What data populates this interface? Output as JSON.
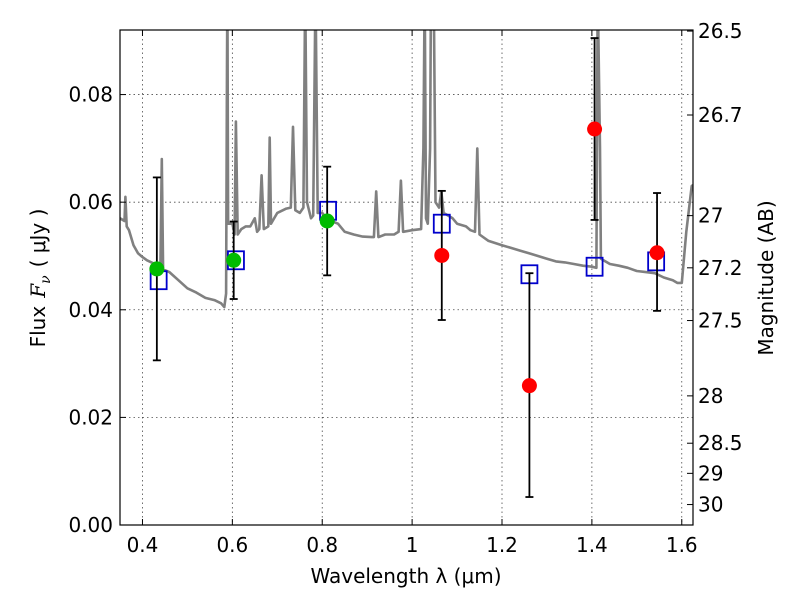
{
  "chart_data": {
    "type": "scatter",
    "xlabel": "Wavelength  λ (μm)",
    "ylabel_prefix": "Flux",
    "ylabel_symbol": "F",
    "ylabel_subscript": "ν",
    "ylabel_unit": "( μJy )",
    "ylabel_right": "Magnitude (AB)",
    "xlim": [
      0.35,
      1.625
    ],
    "ylim": [
      0.0,
      0.092
    ],
    "x_ticks": [
      {
        "value": 0.4,
        "label": "0.4"
      },
      {
        "value": 0.6,
        "label": "0.6"
      },
      {
        "value": 0.8,
        "label": "0.8"
      },
      {
        "value": 1.0,
        "label": "1"
      },
      {
        "value": 1.2,
        "label": "1.2"
      },
      {
        "value": 1.4,
        "label": "1.4"
      },
      {
        "value": 1.6,
        "label": "1.6"
      }
    ],
    "y_ticks": [
      {
        "value": 0.0,
        "label": "0.00"
      },
      {
        "value": 0.02,
        "label": "0.02"
      },
      {
        "value": 0.04,
        "label": "0.04"
      },
      {
        "value": 0.06,
        "label": "0.06"
      },
      {
        "value": 0.08,
        "label": "0.08"
      }
    ],
    "mag_ticks": [
      {
        "value": 0.0918,
        "label": "26.5"
      },
      {
        "value": 0.0762,
        "label": "26.7"
      },
      {
        "value": 0.0575,
        "label": "27"
      },
      {
        "value": 0.0478,
        "label": "27.2"
      },
      {
        "value": 0.038,
        "label": "27.5"
      },
      {
        "value": 0.024,
        "label": "28"
      },
      {
        "value": 0.0152,
        "label": "28.5"
      },
      {
        "value": 0.0096,
        "label": "29"
      },
      {
        "value": 0.0038,
        "label": "30"
      }
    ],
    "grid": true,
    "series": [
      {
        "kind": "spectrum",
        "color": "#808080",
        "points": [
          [
            0.35,
            0.057
          ],
          [
            0.36,
            0.0565
          ],
          [
            0.362,
            0.061
          ],
          [
            0.365,
            0.0555
          ],
          [
            0.37,
            0.0548
          ],
          [
            0.38,
            0.052
          ],
          [
            0.39,
            0.0505
          ],
          [
            0.4,
            0.0498
          ],
          [
            0.41,
            0.0492
          ],
          [
            0.42,
            0.0488
          ],
          [
            0.43,
            0.0484
          ],
          [
            0.44,
            0.048
          ],
          [
            0.443,
            0.068
          ],
          [
            0.446,
            0.0475
          ],
          [
            0.46,
            0.047
          ],
          [
            0.48,
            0.0455
          ],
          [
            0.5,
            0.044
          ],
          [
            0.52,
            0.0432
          ],
          [
            0.54,
            0.0422
          ],
          [
            0.56,
            0.0418
          ],
          [
            0.575,
            0.0412
          ],
          [
            0.582,
            0.0405
          ],
          [
            0.586,
            0.043
          ],
          [
            0.588,
            0.086
          ],
          [
            0.589,
            0.1
          ],
          [
            0.5905,
            0.056
          ],
          [
            0.595,
            0.056
          ],
          [
            0.6,
            0.056
          ],
          [
            0.605,
            0.054
          ],
          [
            0.608,
            0.075
          ],
          [
            0.612,
            0.054
          ],
          [
            0.62,
            0.055
          ],
          [
            0.63,
            0.0555
          ],
          [
            0.64,
            0.0555
          ],
          [
            0.65,
            0.057
          ],
          [
            0.655,
            0.0545
          ],
          [
            0.66,
            0.055
          ],
          [
            0.665,
            0.065
          ],
          [
            0.67,
            0.055
          ],
          [
            0.68,
            0.0555
          ],
          [
            0.683,
            0.072
          ],
          [
            0.686,
            0.056
          ],
          [
            0.7,
            0.058
          ],
          [
            0.72,
            0.0588
          ],
          [
            0.73,
            0.059
          ],
          [
            0.735,
            0.074
          ],
          [
            0.74,
            0.0585
          ],
          [
            0.75,
            0.058
          ],
          [
            0.758,
            0.059
          ],
          [
            0.762,
            0.1
          ],
          [
            0.766,
            0.06
          ],
          [
            0.775,
            0.057
          ],
          [
            0.78,
            0.0575
          ],
          [
            0.785,
            0.1
          ],
          [
            0.79,
            0.058
          ],
          [
            0.8,
            0.058
          ],
          [
            0.81,
            0.057
          ],
          [
            0.82,
            0.0565
          ],
          [
            0.835,
            0.056
          ],
          [
            0.85,
            0.0545
          ],
          [
            0.87,
            0.054
          ],
          [
            0.89,
            0.0536
          ],
          [
            0.91,
            0.0535
          ],
          [
            0.915,
            0.0535
          ],
          [
            0.92,
            0.062
          ],
          [
            0.925,
            0.0535
          ],
          [
            0.94,
            0.054
          ],
          [
            0.96,
            0.054
          ],
          [
            0.97,
            0.0545
          ],
          [
            0.975,
            0.064
          ],
          [
            0.98,
            0.0545
          ],
          [
            1.0,
            0.0548
          ],
          [
            1.02,
            0.055
          ],
          [
            1.025,
            0.07
          ],
          [
            1.028,
            0.1
          ],
          [
            1.031,
            0.057
          ],
          [
            1.035,
            0.056
          ],
          [
            1.04,
            0.07
          ],
          [
            1.042,
            0.1
          ],
          [
            1.048,
            0.1
          ],
          [
            1.052,
            0.06
          ],
          [
            1.06,
            0.059
          ],
          [
            1.065,
            0.062
          ],
          [
            1.07,
            0.058
          ],
          [
            1.09,
            0.057
          ],
          [
            1.1,
            0.056
          ],
          [
            1.12,
            0.0555
          ],
          [
            1.13,
            0.0548
          ],
          [
            1.14,
            0.0545
          ],
          [
            1.145,
            0.07
          ],
          [
            1.15,
            0.054
          ],
          [
            1.17,
            0.0528
          ],
          [
            1.2,
            0.052
          ],
          [
            1.22,
            0.0515
          ],
          [
            1.24,
            0.051
          ],
          [
            1.26,
            0.0505
          ],
          [
            1.28,
            0.05
          ],
          [
            1.3,
            0.0495
          ],
          [
            1.32,
            0.049
          ],
          [
            1.34,
            0.0488
          ],
          [
            1.36,
            0.0485
          ],
          [
            1.38,
            0.0482
          ],
          [
            1.4,
            0.048
          ],
          [
            1.41,
            0.0478
          ],
          [
            1.413,
            0.1
          ],
          [
            1.418,
            0.07
          ],
          [
            1.42,
            0.0495
          ],
          [
            1.43,
            0.049
          ],
          [
            1.44,
            0.0485
          ],
          [
            1.46,
            0.0482
          ],
          [
            1.48,
            0.0478
          ],
          [
            1.5,
            0.0472
          ],
          [
            1.52,
            0.047
          ],
          [
            1.54,
            0.0468
          ],
          [
            1.56,
            0.046
          ],
          [
            1.58,
            0.0455
          ],
          [
            1.59,
            0.045
          ],
          [
            1.6,
            0.045
          ],
          [
            1.61,
            0.0545
          ],
          [
            1.622,
            0.063
          ],
          [
            1.625,
            0.0632
          ]
        ]
      },
      {
        "kind": "model-photometry",
        "color": "#0000cc",
        "points": [
          [
            0.436,
            0.0455
          ],
          [
            0.608,
            0.0492
          ],
          [
            0.813,
            0.0584
          ],
          [
            1.066,
            0.056
          ],
          [
            1.261,
            0.0466
          ],
          [
            1.406,
            0.048
          ],
          [
            1.543,
            0.049
          ]
        ]
      },
      {
        "kind": "observed-green",
        "color": "#00bb00",
        "points": [
          {
            "x": 0.432,
            "y": 0.0476,
            "lo": 0.0306,
            "hi": 0.0646
          },
          {
            "x": 0.603,
            "y": 0.0492,
            "lo": 0.042,
            "hi": 0.0564
          },
          {
            "x": 0.811,
            "y": 0.0565,
            "lo": 0.0464,
            "hi": 0.0666
          }
        ]
      },
      {
        "kind": "observed-red",
        "color": "#ff0000",
        "points": [
          {
            "x": 1.066,
            "y": 0.0501,
            "lo": 0.0381,
            "hi": 0.0621
          },
          {
            "x": 1.261,
            "y": 0.0259,
            "lo": 0.0052,
            "hi": 0.0468
          },
          {
            "x": 1.406,
            "y": 0.0736,
            "lo": 0.0567,
            "hi": 0.0905
          },
          {
            "x": 1.545,
            "y": 0.0506,
            "lo": 0.0398,
            "hi": 0.0617
          }
        ]
      }
    ]
  }
}
